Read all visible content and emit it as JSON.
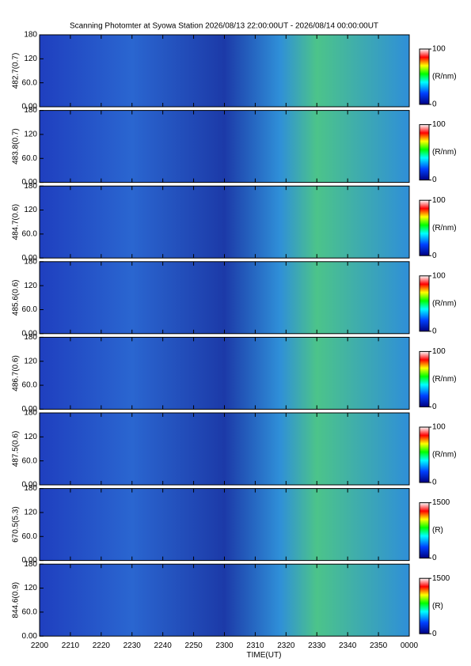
{
  "chart_data": [
    {
      "type": "heatmap",
      "title": "Scanning Photomter at Syowa Station 2026/08/13 22:00:00UT - 2026/08/14 00:00:00UT",
      "ylabel": "482.7(0.7)",
      "ylim": [
        0,
        180
      ],
      "yticks": [
        {
          "value": 0,
          "label": "0.00"
        },
        {
          "value": 60,
          "label": "60.0"
        },
        120,
        180
      ],
      "colorbar": {
        "lim": [
          0,
          100
        ],
        "ticks": [
          0,
          100
        ],
        "label": "(R/nm)"
      }
    },
    {
      "type": "heatmap",
      "ylabel": "483.8(0.7)",
      "ylim": [
        0,
        180
      ],
      "yticks": [
        {
          "value": 0,
          "label": "0.00"
        },
        {
          "value": 60,
          "label": "60.0"
        },
        120,
        180
      ],
      "colorbar": {
        "lim": [
          0,
          100
        ],
        "ticks": [
          0,
          100
        ],
        "label": "(R/nm)"
      }
    },
    {
      "type": "heatmap",
      "ylabel": "484.7(0.6)",
      "ylim": [
        0,
        180
      ],
      "yticks": [
        {
          "value": 0,
          "label": "0.00"
        },
        {
          "value": 60,
          "label": "60.0"
        },
        120,
        180
      ],
      "colorbar": {
        "lim": [
          0,
          100
        ],
        "ticks": [
          0,
          100
        ],
        "label": "(R/nm)"
      }
    },
    {
      "type": "heatmap",
      "ylabel": "485.6(0.6)",
      "ylim": [
        0,
        180
      ],
      "yticks": [
        {
          "value": 0,
          "label": "0.00"
        },
        {
          "value": 60,
          "label": "60.0"
        },
        120,
        180
      ],
      "colorbar": {
        "lim": [
          0,
          100
        ],
        "ticks": [
          0,
          100
        ],
        "label": "(R/nm)"
      }
    },
    {
      "type": "heatmap",
      "ylabel": "486.7(0.6)",
      "ylim": [
        0,
        180
      ],
      "yticks": [
        {
          "value": 0,
          "label": "0.00"
        },
        {
          "value": 60,
          "label": "60.0"
        },
        120,
        180
      ],
      "colorbar": {
        "lim": [
          0,
          100
        ],
        "ticks": [
          0,
          100
        ],
        "label": "(R/nm)"
      }
    },
    {
      "type": "heatmap",
      "ylabel": "487.5(0.6)",
      "ylim": [
        0,
        180
      ],
      "yticks": [
        {
          "value": 0,
          "label": "0.00"
        },
        {
          "value": 60,
          "label": "60.0"
        },
        120,
        180
      ],
      "colorbar": {
        "lim": [
          0,
          100
        ],
        "ticks": [
          0,
          100
        ],
        "label": "(R/nm)"
      }
    },
    {
      "type": "heatmap",
      "ylabel": "670.5(5.3)",
      "ylim": [
        0,
        180
      ],
      "yticks": [
        {
          "value": 0,
          "label": "0.00"
        },
        {
          "value": 60,
          "label": "60.0"
        },
        120,
        180
      ],
      "colorbar": {
        "lim": [
          0,
          1500
        ],
        "ticks": [
          0,
          1500
        ],
        "label": "(R)"
      }
    },
    {
      "type": "heatmap",
      "ylabel": "844.6(0.9)",
      "ylim": [
        0,
        180
      ],
      "yticks": [
        {
          "value": 0,
          "label": "0.00"
        },
        {
          "value": 60,
          "label": "60.0"
        },
        120,
        180
      ],
      "colorbar": {
        "lim": [
          0,
          1500
        ],
        "ticks": [
          0,
          1500
        ],
        "label": "(R)"
      },
      "xlabel": "TIME(UT)",
      "xlim": [
        0,
        120
      ],
      "xticks": [
        {
          "value": 0,
          "label": "2200"
        },
        {
          "value": 10,
          "label": "2210"
        },
        {
          "value": 20,
          "label": "2220"
        },
        {
          "value": 30,
          "label": "2230"
        },
        {
          "value": 40,
          "label": "2240"
        },
        {
          "value": 50,
          "label": "2250"
        },
        {
          "value": 60,
          "label": "2300"
        },
        {
          "value": 70,
          "label": "2310"
        },
        {
          "value": 80,
          "label": "2320"
        },
        {
          "value": 90,
          "label": "2330"
        },
        {
          "value": 100,
          "label": "2340"
        },
        {
          "value": 110,
          "label": "2350"
        },
        {
          "value": 120,
          "label": "0000"
        }
      ]
    }
  ]
}
